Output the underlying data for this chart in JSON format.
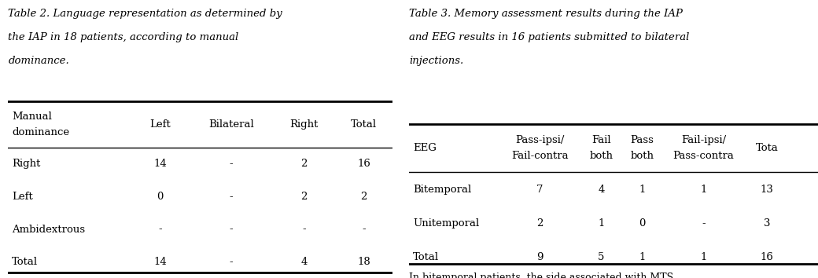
{
  "table2": {
    "title_line1": "Table 2. Language representation as determined by",
    "title_line2": "the IAP in 18 patients, according to manual",
    "title_line3": "dominance.",
    "col_headers": [
      [
        "Manual",
        "dominance"
      ],
      [
        "Left"
      ],
      [
        "Bilateral"
      ],
      [
        "Right"
      ],
      [
        "Total"
      ]
    ],
    "rows": [
      [
        "Right",
        "14",
        "-",
        "2",
        "16"
      ],
      [
        "Left",
        "0",
        "-",
        "2",
        "2"
      ],
      [
        "Ambidextrous",
        "-",
        "-",
        "-",
        "-"
      ],
      [
        "Total",
        "14",
        "-",
        "4",
        "18"
      ]
    ]
  },
  "table3": {
    "title_line1": "Table 3. Memory assessment results during the IAP",
    "title_line2": "and EEG results in 16 patients submitted to bilateral",
    "title_line3": "injections.",
    "col_headers": [
      [
        "EEG"
      ],
      [
        "Pass-ipsi/",
        "Fail-contra"
      ],
      [
        "Fail",
        "both"
      ],
      [
        "Pass",
        "both"
      ],
      [
        "Fail-ipsi/",
        "Pass-contra"
      ],
      [
        "Tota"
      ]
    ],
    "rows": [
      [
        "Bitemporal",
        "7",
        "4",
        "1",
        "1",
        "13"
      ],
      [
        "Unitemporal",
        "2",
        "1",
        "0",
        "-",
        "3"
      ],
      [
        "Total",
        "9",
        "5",
        "1",
        "1",
        "16"
      ]
    ],
    "footnote": "In bitemporal patients, the side associated with MTS"
  },
  "bg": "#ffffff",
  "fg": "#000000",
  "title_fs": 9.5,
  "header_fs": 9.5,
  "cell_fs": 9.5,
  "foot_fs": 9.0
}
